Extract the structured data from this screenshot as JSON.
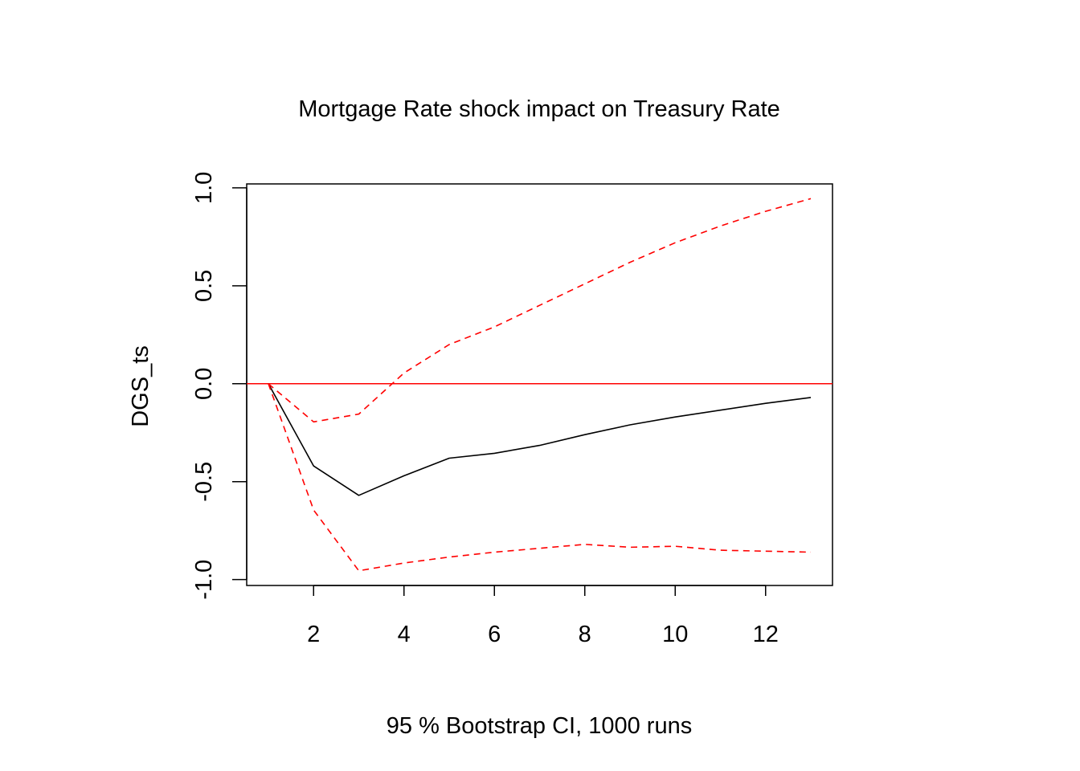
{
  "chart_data": {
    "type": "line",
    "title": "Mortgage Rate shock impact on Treasury Rate",
    "xlabel": "95 % Bootstrap CI,  1000 runs",
    "ylabel": "DGS_ts",
    "xlim": [
      0.52,
      13.48
    ],
    "ylim": [
      -1.03,
      1.02
    ],
    "x_ticks": [
      2,
      4,
      6,
      8,
      10,
      12
    ],
    "x_tick_labels": [
      "2",
      "4",
      "6",
      "8",
      "10",
      "12"
    ],
    "y_ticks": [
      -1.0,
      -0.5,
      0.0,
      0.5,
      1.0
    ],
    "y_tick_labels": [
      "-1.0",
      "-0.5",
      "0.0",
      "0.5",
      "1.0"
    ],
    "grid": false,
    "legend": "none",
    "reference_line": {
      "y": 0,
      "color": "#ff0000"
    },
    "x": [
      1,
      2,
      3,
      4,
      5,
      6,
      7,
      8,
      9,
      10,
      11,
      12,
      13
    ],
    "series": [
      {
        "role": "response",
        "color": "#000000",
        "dashed": false,
        "values": [
          0.0,
          -0.42,
          -0.57,
          -0.47,
          -0.38,
          -0.355,
          -0.315,
          -0.26,
          -0.21,
          -0.17,
          -0.135,
          -0.1,
          -0.07
        ]
      },
      {
        "role": "upper",
        "color": "#ff0000",
        "dashed": true,
        "values": [
          0.0,
          -0.195,
          -0.155,
          0.055,
          0.2,
          0.29,
          0.4,
          0.51,
          0.62,
          0.72,
          0.805,
          0.88,
          0.945
        ]
      },
      {
        "role": "lower",
        "color": "#ff0000",
        "dashed": true,
        "values": [
          0.0,
          -0.645,
          -0.955,
          -0.915,
          -0.885,
          -0.86,
          -0.84,
          -0.82,
          -0.835,
          -0.83,
          -0.85,
          -0.855,
          -0.86
        ]
      }
    ]
  }
}
